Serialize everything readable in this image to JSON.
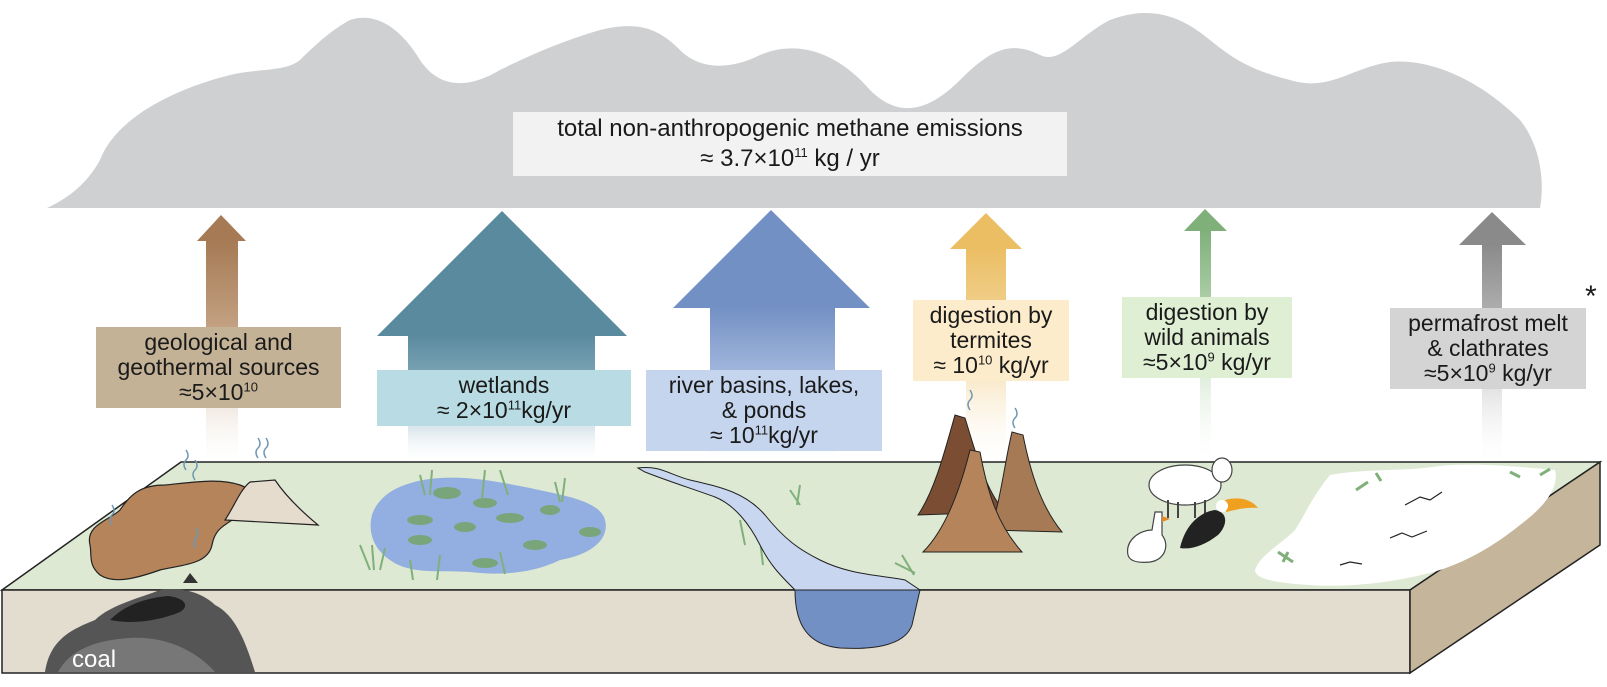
{
  "total": {
    "line1": "total non-anthropogenic methane emissions",
    "line2_prefix": "≈ 3.7×10",
    "line2_exp": "11",
    "line2_suffix": " kg / yr"
  },
  "sources": {
    "geological": {
      "line1": "geological and",
      "line2": "geothermal sources",
      "line3_prefix": "≈5×10",
      "line3_exp": "10",
      "color": "#a57a54"
    },
    "wetlands": {
      "line1": "wetlands",
      "line2_prefix": "≈ 2×10",
      "line2_exp": "11",
      "line2_suffix": "kg/yr",
      "color": "#5a8a9e"
    },
    "rivers": {
      "line1": "river basins, lakes,",
      "line2": "& ponds",
      "line3_prefix": "≈ 10",
      "line3_exp": "11",
      "line3_suffix": "kg/yr",
      "color": "#7390c4"
    },
    "termites": {
      "line1": "digestion by",
      "line2": "termites",
      "line3_prefix": "≈ 10",
      "line3_exp": "10",
      "line3_suffix": " kg/yr",
      "color": "#ebbe64"
    },
    "animals": {
      "line1": "digestion by",
      "line2": "wild animals",
      "line3_prefix": "≈5×10",
      "line3_exp": "9",
      "line3_suffix": " kg/yr",
      "color": "#7fb07a"
    },
    "permafrost": {
      "line1": "permafrost melt",
      "line2": "& clathrates",
      "line3_prefix": "≈5×10",
      "line3_exp": "9",
      "line3_suffix": " kg/yr",
      "color": "#8a8a8a"
    }
  },
  "asterisk": "*",
  "coal_label": "coal",
  "colors": {
    "cloud": "#cfd0d2",
    "ground_top": "#dde9d2",
    "ground_front": "#e3ddd0",
    "ground_side": "#c5b59a",
    "water": "#93aee0",
    "coal": "#555555",
    "outline": "#222222"
  }
}
